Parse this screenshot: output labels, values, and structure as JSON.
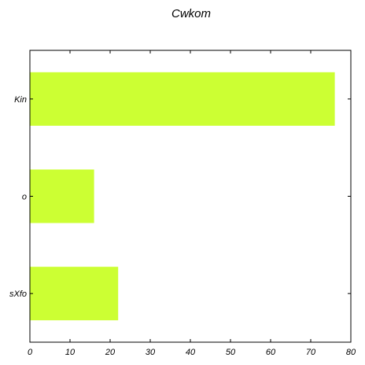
{
  "chart_data": {
    "type": "bar",
    "orientation": "horizontal",
    "title": "Cwkom",
    "categories": [
      "Kin",
      "o",
      "sXfo"
    ],
    "values": [
      76,
      16,
      22
    ],
    "xlabel": "",
    "ylabel": "",
    "xlim": [
      0,
      80
    ],
    "xticks": [
      0,
      10,
      20,
      30,
      40,
      50,
      60,
      70,
      80
    ],
    "grid": false,
    "legend": "none",
    "bar_color": "#ccff33"
  }
}
